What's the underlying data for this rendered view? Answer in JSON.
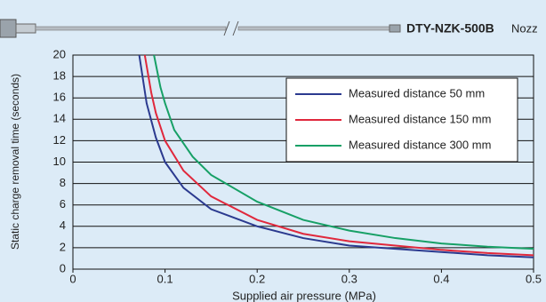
{
  "chart_data": {
    "type": "line",
    "nozzle_model": "DTY-NZK-500B",
    "nozzle_word": "Nozz",
    "x_label": "Supplied air pressure (MPa)",
    "y_label": "Static charge removal time (seconds)",
    "xlim": [
      0,
      0.5
    ],
    "ylim": [
      0,
      20
    ],
    "xticks": [
      0,
      0.1,
      0.2,
      0.3,
      0.4,
      0.5
    ],
    "yticks": [
      0,
      2,
      4,
      6,
      8,
      10,
      12,
      14,
      16,
      18,
      20
    ],
    "grid": true,
    "legend": "upper right",
    "series": [
      {
        "name": "Measured distance 50 mm",
        "color": "#2b3a8f",
        "x": [
          0.072,
          0.08,
          0.09,
          0.1,
          0.12,
          0.15,
          0.2,
          0.25,
          0.3,
          0.35,
          0.4,
          0.45,
          0.5
        ],
        "values": [
          20,
          15.5,
          12.3,
          10,
          7.6,
          5.6,
          4,
          2.9,
          2.2,
          1.9,
          1.6,
          1.3,
          1.1
        ]
      },
      {
        "name": "Measured distance 150 mm",
        "color": "#e0283c",
        "x": [
          0.078,
          0.085,
          0.09,
          0.1,
          0.12,
          0.15,
          0.2,
          0.25,
          0.3,
          0.35,
          0.4,
          0.45,
          0.5
        ],
        "values": [
          20,
          16.5,
          14.6,
          12,
          9.2,
          6.8,
          4.6,
          3.3,
          2.6,
          2.2,
          1.8,
          1.5,
          1.3
        ]
      },
      {
        "name": "Measured distance 300 mm",
        "color": "#17a066",
        "x": [
          0.088,
          0.095,
          0.1,
          0.11,
          0.13,
          0.15,
          0.2,
          0.25,
          0.3,
          0.35,
          0.4,
          0.45,
          0.5
        ],
        "values": [
          20,
          17,
          15.5,
          13,
          10.5,
          8.8,
          6.3,
          4.6,
          3.6,
          2.9,
          2.4,
          2.1,
          1.9
        ]
      }
    ]
  }
}
